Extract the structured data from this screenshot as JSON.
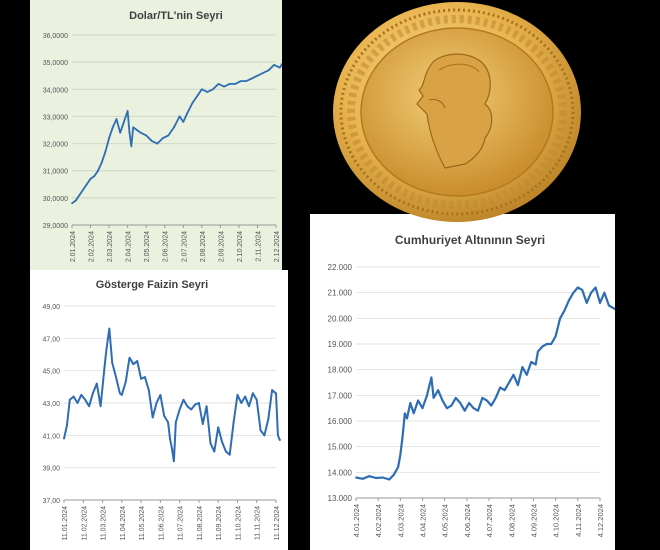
{
  "colors": {
    "line": "#2e6db4",
    "bg1": "#eaf1de",
    "gold": "#e8b34d"
  },
  "chart_data": [
    {
      "type": "line",
      "title": "Dolar/TL'nin Seyri",
      "xlabel": "",
      "ylabel": "",
      "ylim": [
        29.0,
        36.0
      ],
      "yticks": [
        "29,0000",
        "30,0000",
        "31,0000",
        "32,0000",
        "33,0000",
        "34,0000",
        "35,0000",
        "36,0000"
      ],
      "xticks": [
        "2.01.2024",
        "2.02.2024",
        "2.03.2024",
        "2.04.2024",
        "2.05.2024",
        "2.06.2024",
        "2.07.2024",
        "2.08.2024",
        "2.09.2024",
        "2.10.2024",
        "2.11.2024",
        "2.12.2024"
      ],
      "series": [
        {
          "x": [
            0,
            0.2,
            0.4,
            0.6,
            0.8,
            1.0,
            1.2,
            1.4,
            1.6,
            1.8,
            2.0,
            2.2,
            2.4,
            2.6,
            2.8,
            3.0,
            3.1,
            3.2,
            3.3,
            3.5,
            3.7,
            4.0,
            4.3,
            4.6,
            4.9,
            5.2,
            5.5,
            5.8,
            6.0,
            6.2,
            6.5,
            6.8,
            7.0,
            7.3,
            7.6,
            7.9,
            8.2,
            8.5,
            8.8,
            9.1,
            9.4,
            9.7,
            10.0,
            10.3,
            10.6,
            10.9,
            11.2,
            11.5,
            11.7,
            11.9
          ],
          "y": [
            29.8,
            29.9,
            30.1,
            30.3,
            30.5,
            30.7,
            30.8,
            31.0,
            31.3,
            31.7,
            32.2,
            32.6,
            32.9,
            32.4,
            32.8,
            33.2,
            32.4,
            31.9,
            32.6,
            32.5,
            32.4,
            32.3,
            32.1,
            32.0,
            32.2,
            32.3,
            32.6,
            33.0,
            32.8,
            33.1,
            33.5,
            33.8,
            34.0,
            33.9,
            34.0,
            34.2,
            34.1,
            34.2,
            34.2,
            34.3,
            34.3,
            34.4,
            34.5,
            34.6,
            34.7,
            34.9,
            34.8,
            35.1,
            35.2,
            35.3
          ]
        }
      ]
    },
    {
      "type": "line",
      "title": "Gösterge Faizin Seyri",
      "xlabel": "",
      "ylabel": "",
      "ylim": [
        37.0,
        49.0
      ],
      "yticks": [
        "37,00",
        "39,00",
        "41,00",
        "43,00",
        "45,00",
        "47,00",
        "49,00"
      ],
      "xticks": [
        "11.01.2024",
        "11.02.2024",
        "11.03.2024",
        "11.04.2024",
        "11.05.2024",
        "11.06.2024",
        "11.07.2024",
        "11.08.2024",
        "11.09.2024",
        "11.10.2024",
        "11.11.2024",
        "11.12.2024"
      ],
      "series": [
        {
          "x": [
            0,
            0.15,
            0.3,
            0.5,
            0.7,
            0.9,
            1.1,
            1.3,
            1.5,
            1.7,
            1.9,
            2.1,
            2.2,
            2.35,
            2.5,
            2.7,
            2.9,
            3.0,
            3.2,
            3.4,
            3.6,
            3.8,
            4.0,
            4.2,
            4.4,
            4.6,
            4.8,
            5.0,
            5.2,
            5.4,
            5.5,
            5.6,
            5.7,
            5.8,
            6.0,
            6.2,
            6.4,
            6.6,
            6.8,
            7.0,
            7.2,
            7.4,
            7.6,
            7.8,
            8.0,
            8.2,
            8.4,
            8.6,
            8.8,
            9.0,
            9.2,
            9.4,
            9.6,
            9.8,
            10.0,
            10.2,
            10.4,
            10.6,
            10.8,
            11.0,
            11.1,
            11.2
          ],
          "y": [
            40.8,
            41.6,
            43.2,
            43.4,
            43.0,
            43.5,
            43.2,
            42.8,
            43.6,
            44.2,
            42.8,
            45.2,
            46.3,
            47.6,
            45.5,
            44.6,
            43.6,
            43.5,
            44.3,
            45.8,
            45.4,
            45.6,
            44.5,
            44.6,
            43.8,
            42.1,
            43.0,
            43.5,
            42.2,
            41.8,
            40.8,
            40.2,
            39.4,
            41.8,
            42.6,
            43.2,
            42.8,
            42.6,
            42.9,
            43.0,
            41.7,
            42.8,
            40.5,
            40.0,
            41.5,
            40.6,
            40.0,
            39.8,
            41.8,
            43.5,
            43.0,
            43.4,
            42.8,
            43.6,
            43.2,
            41.3,
            41.0,
            42.0,
            43.8,
            43.6,
            41.0,
            40.7
          ]
        }
      ]
    },
    {
      "type": "line",
      "title": "Cumhuriyet Altınının Seyri",
      "xlabel": "",
      "ylabel": "",
      "ylim": [
        13000,
        22000
      ],
      "yticks": [
        "13.000",
        "14.000",
        "15.000",
        "16.000",
        "17.000",
        "18.000",
        "19.000",
        "20.000",
        "21.000",
        "22.000"
      ],
      "xticks": [
        "4.01.2024",
        "4.02.2024",
        "4.03.2024",
        "4.04.2024",
        "4.05.2024",
        "4.06.2024",
        "4.07.2024",
        "4.08.2024",
        "4.09.2024",
        "4.10.2024",
        "4.11.2024",
        "4.12.2024"
      ],
      "series": [
        {
          "x": [
            0,
            0.3,
            0.6,
            0.9,
            1.2,
            1.5,
            1.7,
            1.9,
            2.0,
            2.1,
            2.2,
            2.3,
            2.45,
            2.6,
            2.8,
            3.0,
            3.2,
            3.4,
            3.5,
            3.7,
            3.9,
            4.1,
            4.3,
            4.5,
            4.7,
            4.9,
            5.1,
            5.3,
            5.5,
            5.7,
            5.9,
            6.1,
            6.3,
            6.5,
            6.7,
            6.9,
            7.1,
            7.3,
            7.5,
            7.7,
            7.9,
            8.1,
            8.2,
            8.4,
            8.6,
            8.8,
            9.0,
            9.2,
            9.4,
            9.6,
            9.8,
            10.0,
            10.2,
            10.4,
            10.6,
            10.8,
            11.0,
            11.2,
            11.4,
            11.6,
            11.8
          ],
          "y": [
            13800,
            13750,
            13850,
            13780,
            13800,
            13720,
            13900,
            14200,
            14700,
            15400,
            16300,
            16100,
            16700,
            16300,
            16800,
            16500,
            17000,
            17700,
            16900,
            17200,
            16800,
            16500,
            16600,
            16900,
            16700,
            16400,
            16700,
            16500,
            16400,
            16900,
            16800,
            16600,
            16900,
            17300,
            17200,
            17500,
            17800,
            17400,
            18100,
            17800,
            18300,
            18200,
            18700,
            18900,
            19000,
            19000,
            19300,
            20000,
            20300,
            20700,
            21000,
            21200,
            21100,
            20600,
            21000,
            21200,
            20600,
            21000,
            20500,
            20400,
            20300
          ]
        }
      ]
    }
  ]
}
